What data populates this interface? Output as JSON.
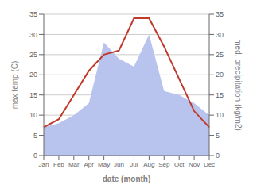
{
  "chart_data": {
    "type": "line",
    "categories": [
      "Jan",
      "Feb",
      "Mar",
      "Apr",
      "May",
      "Jun",
      "Jul",
      "Aug",
      "Sep",
      "Oct",
      "Nov",
      "Dec"
    ],
    "series": [
      {
        "type": "area",
        "axis": "y2",
        "color": "#b8c4ee",
        "values": [
          7,
          8,
          10,
          13,
          28,
          24,
          22,
          30,
          16,
          15,
          13,
          10
        ]
      },
      {
        "type": "line",
        "color": "#c0392b",
        "values": [
          7,
          9,
          15,
          21,
          25,
          26,
          34,
          34,
          27,
          19,
          11,
          7
        ]
      }
    ],
    "xlabel": "date (month)",
    "ylabel": "max temp (C)",
    "y2label": "med. precipitation (kg/m2)",
    "ylim": [
      0,
      35
    ],
    "yticks": [
      0,
      5,
      10,
      15,
      20,
      25,
      30,
      35
    ],
    "y2lim": [
      0,
      35
    ],
    "y2ticks": [
      0,
      5,
      10,
      15,
      20,
      25,
      30,
      35
    ],
    "grid": true
  }
}
